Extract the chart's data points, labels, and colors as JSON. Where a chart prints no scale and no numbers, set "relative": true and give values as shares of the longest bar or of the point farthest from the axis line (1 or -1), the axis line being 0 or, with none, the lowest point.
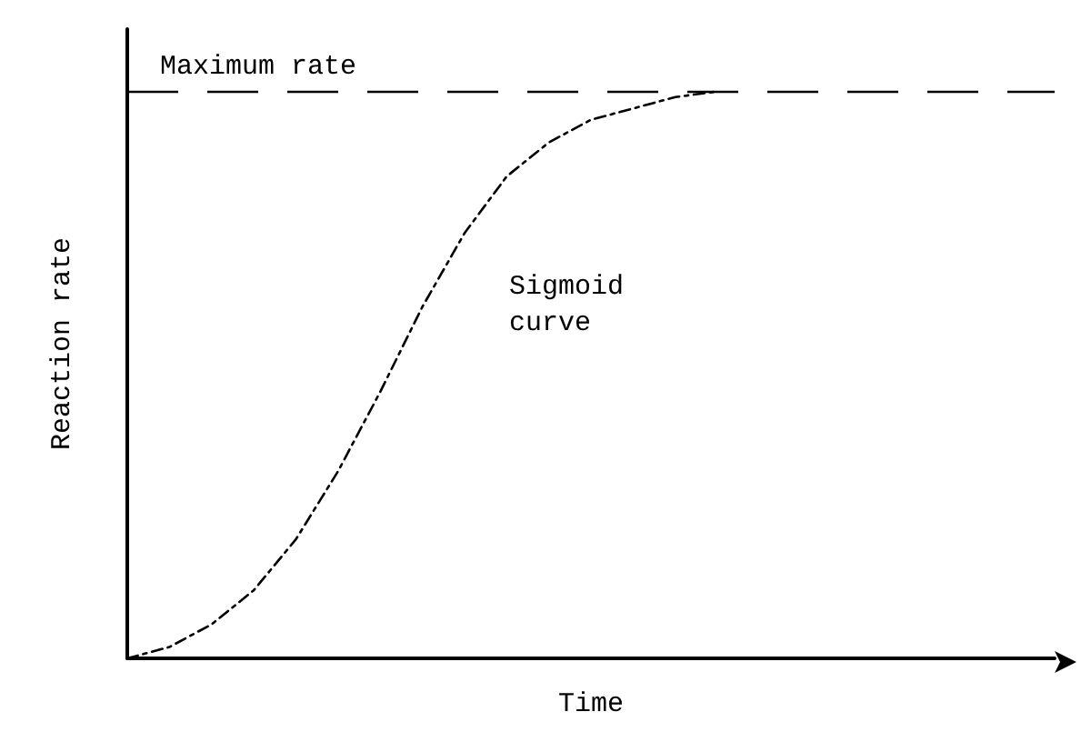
{
  "chart_data": {
    "type": "line",
    "relative": true,
    "xlabel": "Time",
    "ylabel": "Reaction rate",
    "categories": [
      null,
      null,
      null,
      null,
      null,
      null,
      null,
      null,
      null,
      null,
      null,
      null,
      null,
      null,
      null,
      null,
      null,
      null,
      null,
      null,
      null,
      null,
      null
    ],
    "series": [
      {
        "color": "#000000",
        "values": [
          0,
          0.02,
          0.06,
          0.12,
          0.21,
          0.33,
          0.47,
          0.62,
          0.75,
          0.85,
          0.91,
          0.95,
          0.97,
          0.99,
          1,
          null,
          null,
          null,
          null,
          null,
          null,
          null,
          null
        ]
      }
    ],
    "ref_lines": [
      {
        "axis": "y",
        "value": 1,
        "label": "Maximum rate",
        "color": "#000000",
        "line_style": "dashed"
      }
    ],
    "annotations": [
      "Sigmoid\ncurve"
    ],
    "grid": false,
    "marker": "none",
    "line_style": "dashed"
  }
}
